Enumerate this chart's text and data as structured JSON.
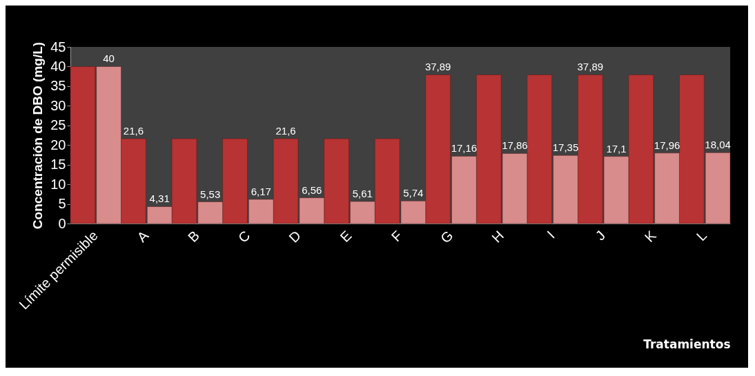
{
  "chart_data": {
    "type": "bar",
    "xlabel": "Tratamientos",
    "ylabel": "Concentración de DBO (mg/L)",
    "categories": [
      "Límite permisible",
      "A",
      "B",
      "C",
      "D",
      "E",
      "F",
      "G",
      "H",
      "I",
      "J",
      "K",
      "L"
    ],
    "series": [
      {
        "color": "#b83333",
        "values": [
          40,
          21.6,
          21.6,
          21.6,
          21.6,
          21.6,
          21.6,
          37.89,
          37.89,
          37.89,
          37.89,
          37.89,
          37.89
        ],
        "value_labels": [
          null,
          "21,6",
          null,
          null,
          "21,6",
          null,
          null,
          "37,89",
          null,
          null,
          "37,89",
          null,
          null
        ]
      },
      {
        "color": "#d98c8c",
        "values": [
          40,
          4.31,
          5.53,
          6.17,
          6.56,
          5.61,
          5.74,
          17.16,
          17.86,
          17.35,
          17.1,
          17.96,
          18.04
        ],
        "value_labels": [
          "40",
          "4,31",
          "5,53",
          "6,17",
          "6,56",
          "5,61",
          "5,74",
          "17,16",
          "17,86",
          "17,35",
          "17,1",
          "17,96",
          "18,04"
        ]
      }
    ],
    "ylim": [
      0,
      45
    ],
    "yticks": [
      0,
      5,
      10,
      15,
      20,
      25,
      30,
      35,
      40,
      45
    ],
    "grid": false,
    "legend": false
  }
}
